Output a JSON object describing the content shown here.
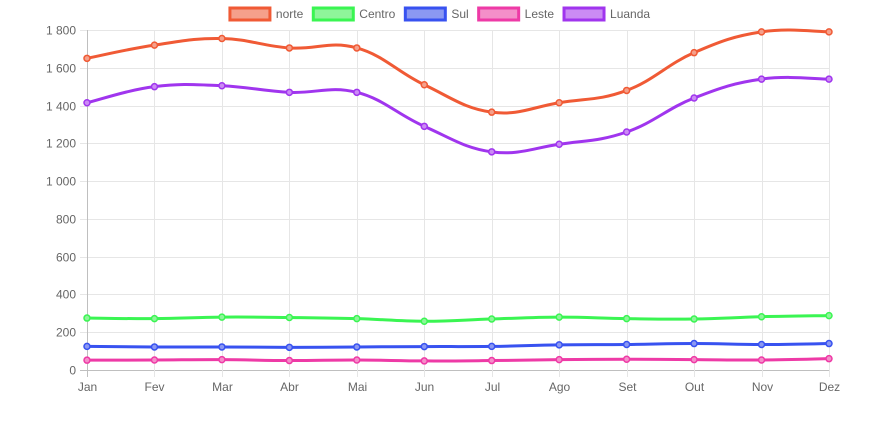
{
  "chart_data": {
    "type": "line",
    "title": "",
    "xlabel": "",
    "ylabel": "",
    "categories": [
      "Jan",
      "Fev",
      "Mar",
      "Abr",
      "Mai",
      "Jun",
      "Jul",
      "Ago",
      "Set",
      "Out",
      "Nov",
      "Dez"
    ],
    "ylim": [
      0,
      1800
    ],
    "yticks": [
      0,
      200,
      400,
      600,
      800,
      1000,
      1200,
      1400,
      1600,
      1800
    ],
    "ytick_labels": [
      "0",
      "200",
      "400",
      "600",
      "800",
      "1 000",
      "1 200",
      "1 400",
      "1 600",
      "1 800"
    ],
    "grid": true,
    "legend_position": "top-center",
    "series": [
      {
        "name": "norte",
        "color": "#f05a35",
        "fill": "#f5a08b",
        "values": [
          1650,
          1720,
          1755,
          1705,
          1705,
          1510,
          1365,
          1415,
          1480,
          1680,
          1790,
          1790
        ]
      },
      {
        "name": "Centro",
        "color": "#3af552",
        "fill": "#8ef59a",
        "values": [
          275,
          272,
          280,
          278,
          272,
          258,
          270,
          280,
          272,
          270,
          282,
          288
        ]
      },
      {
        "name": "Sul",
        "color": "#3852f0",
        "fill": "#8b98f2",
        "values": [
          125,
          122,
          122,
          120,
          122,
          124,
          125,
          133,
          135,
          140,
          135,
          140
        ]
      },
      {
        "name": "Leste",
        "color": "#ee3aa6",
        "fill": "#f48fc9",
        "values": [
          52,
          53,
          55,
          50,
          53,
          48,
          50,
          55,
          57,
          55,
          53,
          60
        ]
      },
      {
        "name": "Luanda",
        "color": "#a035ee",
        "fill": "#cb8bf4",
        "values": [
          1415,
          1500,
          1505,
          1470,
          1470,
          1290,
          1155,
          1195,
          1260,
          1440,
          1540,
          1540
        ]
      }
    ]
  }
}
